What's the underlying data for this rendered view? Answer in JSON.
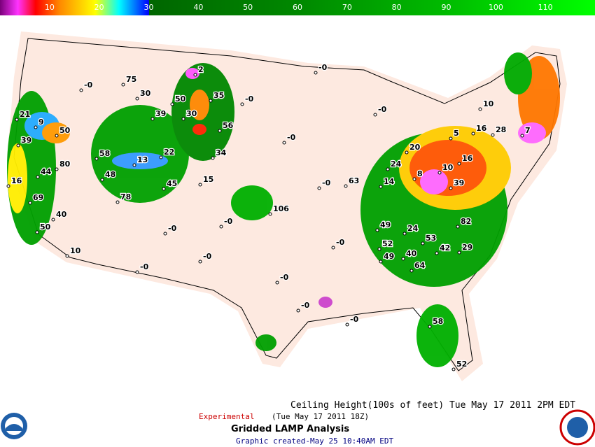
{
  "colorbar": {
    "range": [
      0,
      120
    ],
    "ticks": [
      10,
      20,
      30,
      40,
      50,
      60,
      70,
      80,
      90,
      100,
      110
    ]
  },
  "footer": {
    "title": "Ceiling Height(100s of feet) Tue May 17 2011  2PM EDT",
    "experimental": "Experimental",
    "valid": "(Tue May 17 2011 18Z)",
    "product": "Gridded LAMP Analysis",
    "created": "Graphic created-May 25 10:40AM EDT"
  },
  "stations": [
    "75",
    "30",
    "2",
    "35",
    "50",
    "30",
    "56",
    "39",
    "22",
    "34",
    "58",
    "48",
    "13",
    "45",
    "15",
    "78",
    "21",
    "9",
    "50",
    "39",
    "44",
    "80",
    "16",
    "69",
    "40",
    "50",
    "10",
    "106",
    "63",
    "24",
    "14",
    "8",
    "10",
    "16",
    "5",
    "20",
    "16",
    "28",
    "10",
    "7",
    "24",
    "39",
    "49",
    "52",
    "40",
    "49",
    "64",
    "53",
    "42",
    "82",
    "29",
    "58",
    "52",
    "-0",
    "-0",
    "-0",
    "-0",
    "-0",
    "-0",
    "-0",
    "-0",
    "-0",
    "-0",
    "-0",
    "-0",
    "-0",
    "-0",
    "-0"
  ]
}
